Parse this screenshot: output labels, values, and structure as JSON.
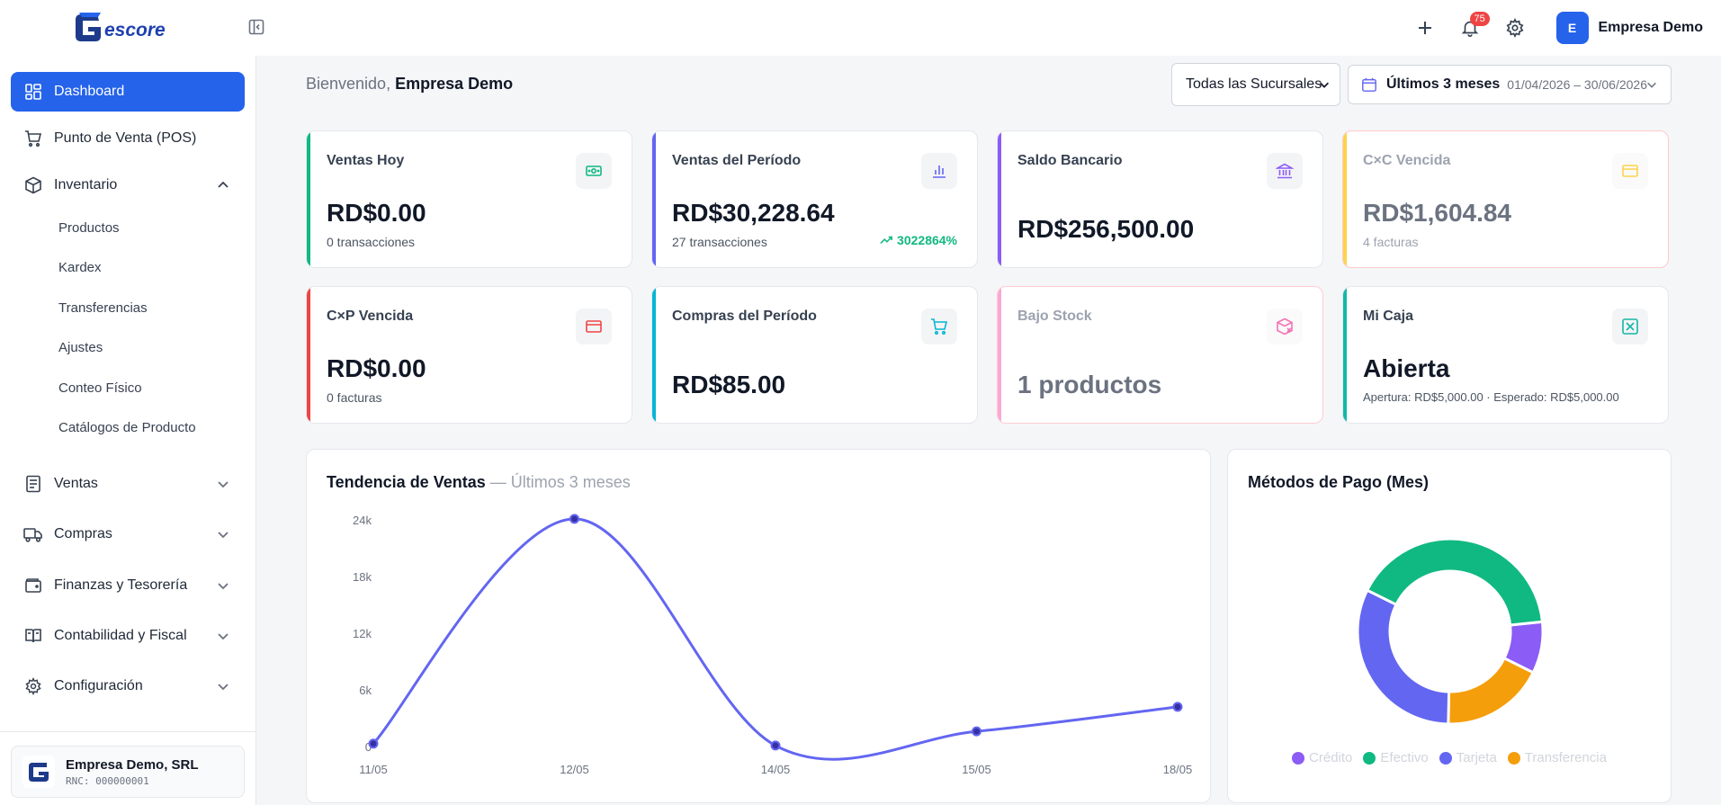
{
  "header": {
    "brand": "Gescore",
    "notifications_count": "75",
    "user": {
      "initial": "E",
      "name": "Empresa Demo"
    }
  },
  "sidebar": {
    "items": [
      {
        "label": "Dashboard",
        "icon": "dashboard-icon",
        "active": true
      },
      {
        "label": "Punto de Venta (POS)",
        "icon": "cart-icon"
      },
      {
        "label": "Inventario",
        "icon": "box-icon",
        "expanded": true
      },
      {
        "label": "Ventas",
        "icon": "receipt-icon"
      },
      {
        "label": "Compras",
        "icon": "truck-icon"
      },
      {
        "label": "Finanzas y Tesorería",
        "icon": "wallet-icon"
      },
      {
        "label": "Contabilidad y Fiscal",
        "icon": "book-icon"
      },
      {
        "label": "Configuración",
        "icon": "gear-icon"
      }
    ],
    "inventario_sub": [
      "Productos",
      "Kardex",
      "Transferencias",
      "Ajustes",
      "Conteo Físico",
      "Catálogos de Producto"
    ],
    "company": {
      "name": "Empresa Demo, SRL",
      "rnc": "RNC: 000000001"
    }
  },
  "main": {
    "welcome_prefix": "Bienvenido,",
    "welcome_name": "Empresa Demo",
    "branch_select": "Todas las Sucursales",
    "date_range": {
      "label": "Últimos 3 meses",
      "values": "01/04/2026 – 30/06/2026"
    }
  },
  "cards": [
    {
      "title": "Ventas Hoy",
      "value": "RD$0.00",
      "sub": "0 transacciones",
      "color": "#10b981"
    },
    {
      "title": "Ventas del Período",
      "value": "RD$30,228.64",
      "sub": "27 transacciones",
      "trend": "3022864%",
      "color": "#6366f1"
    },
    {
      "title": "Saldo Bancario",
      "value": "RD$256,500.00",
      "color": "#8b5cf6"
    },
    {
      "title": "C×C Vencida",
      "value": "RD$1,604.84",
      "sub": "4 facturas",
      "color": "#fbbf24"
    },
    {
      "title": "C×P Vencida",
      "value": "RD$0.00",
      "sub": "0 facturas",
      "color": "#ef4444"
    },
    {
      "title": "Compras del Período",
      "value": "RD$85.00",
      "color": "#06b6d4"
    },
    {
      "title": "Bajo Stock",
      "value": "1 productos",
      "color": "#f472b6"
    },
    {
      "title": "Mi Caja",
      "value": "Abierta",
      "sub": "Apertura: RD$5,000.00 · Esperado: RD$5,000.00",
      "color": "#14b8a6"
    }
  ],
  "sales_chart": {
    "title": "Tendencia de Ventas",
    "subtitle": "— Últimos 3 meses"
  },
  "payment_chart": {
    "title": "Métodos de Pago (Mes)"
  },
  "chart_data": [
    {
      "type": "line",
      "title": "Tendencia de Ventas",
      "subtitle": "— Últimos 3 meses",
      "x": [
        "11/05",
        "12/05",
        "14/05",
        "15/05",
        "18/05"
      ],
      "y_ticks": [
        "0",
        "6k",
        "12k",
        "18k",
        "24k"
      ],
      "ylim": [
        0,
        24000
      ],
      "series": [
        {
          "values": [
            400,
            24200,
            200,
            1700,
            4300
          ]
        }
      ],
      "color": "#6366f1"
    },
    {
      "type": "pie",
      "title": "Métodos de Pago (Mes)",
      "slices": [
        {
          "label": "Crédito",
          "value": 9,
          "color": "#8b5cf6"
        },
        {
          "label": "Efectivo",
          "value": 41,
          "color": "#10b981"
        },
        {
          "label": "Tarjeta",
          "value": 32,
          "color": "#6366f1"
        },
        {
          "label": "Transferencia",
          "value": 18,
          "color": "#f59e0b"
        }
      ]
    }
  ]
}
